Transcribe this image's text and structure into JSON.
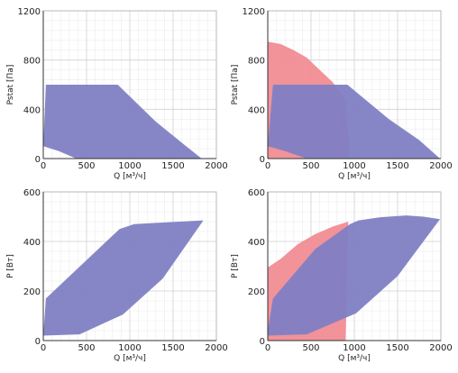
{
  "colors": {
    "blue_region": "#7f80c4",
    "red_region": "#f18c93"
  },
  "chart_data": [
    {
      "type": "area",
      "xlabel": "Q [м³/ч]",
      "ylabel": "Pstat [Па]",
      "xlim": [
        0,
        2000
      ],
      "ylim": [
        0,
        1200
      ],
      "xticks": [
        0,
        500,
        1000,
        1500,
        2000
      ],
      "yticks": [
        0,
        400,
        800,
        1200
      ],
      "grid": true,
      "series": [
        {
          "color": "#7f80c4",
          "points": [
            [
              0,
              100
            ],
            [
              30,
              600
            ],
            [
              860,
              600
            ],
            [
              1300,
              300
            ],
            [
              1650,
              100
            ],
            [
              1830,
              0
            ],
            [
              380,
              0
            ],
            [
              180,
              60
            ],
            [
              0,
              100
            ]
          ]
        }
      ]
    },
    {
      "type": "area",
      "xlabel": "Q [м³/ч]",
      "ylabel": "Pstat [Па]",
      "xlim": [
        0,
        2000
      ],
      "ylim": [
        0,
        1200
      ],
      "xticks": [
        0,
        500,
        1000,
        1500,
        2000
      ],
      "yticks": [
        0,
        400,
        800,
        1200
      ],
      "grid": true,
      "series": [
        {
          "color": "#f18c93",
          "points": [
            [
              0,
              950
            ],
            [
              150,
              930
            ],
            [
              300,
              880
            ],
            [
              450,
              820
            ],
            [
              600,
              720
            ],
            [
              750,
              620
            ],
            [
              900,
              480
            ],
            [
              950,
              0
            ],
            [
              0,
              0
            ]
          ]
        },
        {
          "color": "#7f80c4",
          "points": [
            [
              0,
              100
            ],
            [
              60,
              600
            ],
            [
              920,
              600
            ],
            [
              1400,
              320
            ],
            [
              1750,
              150
            ],
            [
              1990,
              0
            ],
            [
              450,
              0
            ],
            [
              200,
              60
            ],
            [
              0,
              100
            ]
          ]
        }
      ]
    },
    {
      "type": "area",
      "xlabel": "Q [м³/ч]",
      "ylabel": "P [Вт]",
      "xlim": [
        0,
        2000
      ],
      "ylim": [
        0,
        600
      ],
      "xticks": [
        0,
        500,
        1000,
        1500,
        2000
      ],
      "yticks": [
        0,
        200,
        400,
        600
      ],
      "grid": true,
      "series": [
        {
          "color": "#7f80c4",
          "points": [
            [
              0,
              20
            ],
            [
              30,
              170
            ],
            [
              880,
              450
            ],
            [
              1050,
              470
            ],
            [
              1300,
              475
            ],
            [
              1850,
              485
            ],
            [
              1380,
              250
            ],
            [
              920,
              105
            ],
            [
              420,
              25
            ],
            [
              0,
              20
            ]
          ]
        }
      ]
    },
    {
      "type": "area",
      "xlabel": "Q [м³/ч]",
      "ylabel": "P [Вт]",
      "xlim": [
        0,
        2000
      ],
      "ylim": [
        0,
        600
      ],
      "xticks": [
        0,
        500,
        1000,
        1500,
        2000
      ],
      "yticks": [
        0,
        200,
        400,
        600
      ],
      "grid": true,
      "series": [
        {
          "color": "#f18c93",
          "points": [
            [
              0,
              295
            ],
            [
              150,
              330
            ],
            [
              350,
              390
            ],
            [
              550,
              430
            ],
            [
              750,
              460
            ],
            [
              930,
              480
            ],
            [
              900,
              0
            ],
            [
              0,
              0
            ]
          ]
        },
        {
          "color": "#7f80c4",
          "points": [
            [
              0,
              40
            ],
            [
              60,
              170
            ],
            [
              550,
              370
            ],
            [
              950,
              470
            ],
            [
              1050,
              485
            ],
            [
              1300,
              498
            ],
            [
              1600,
              505
            ],
            [
              1800,
              500
            ],
            [
              1990,
              490
            ],
            [
              1500,
              260
            ],
            [
              1020,
              110
            ],
            [
              450,
              25
            ],
            [
              0,
              20
            ]
          ]
        }
      ]
    }
  ]
}
